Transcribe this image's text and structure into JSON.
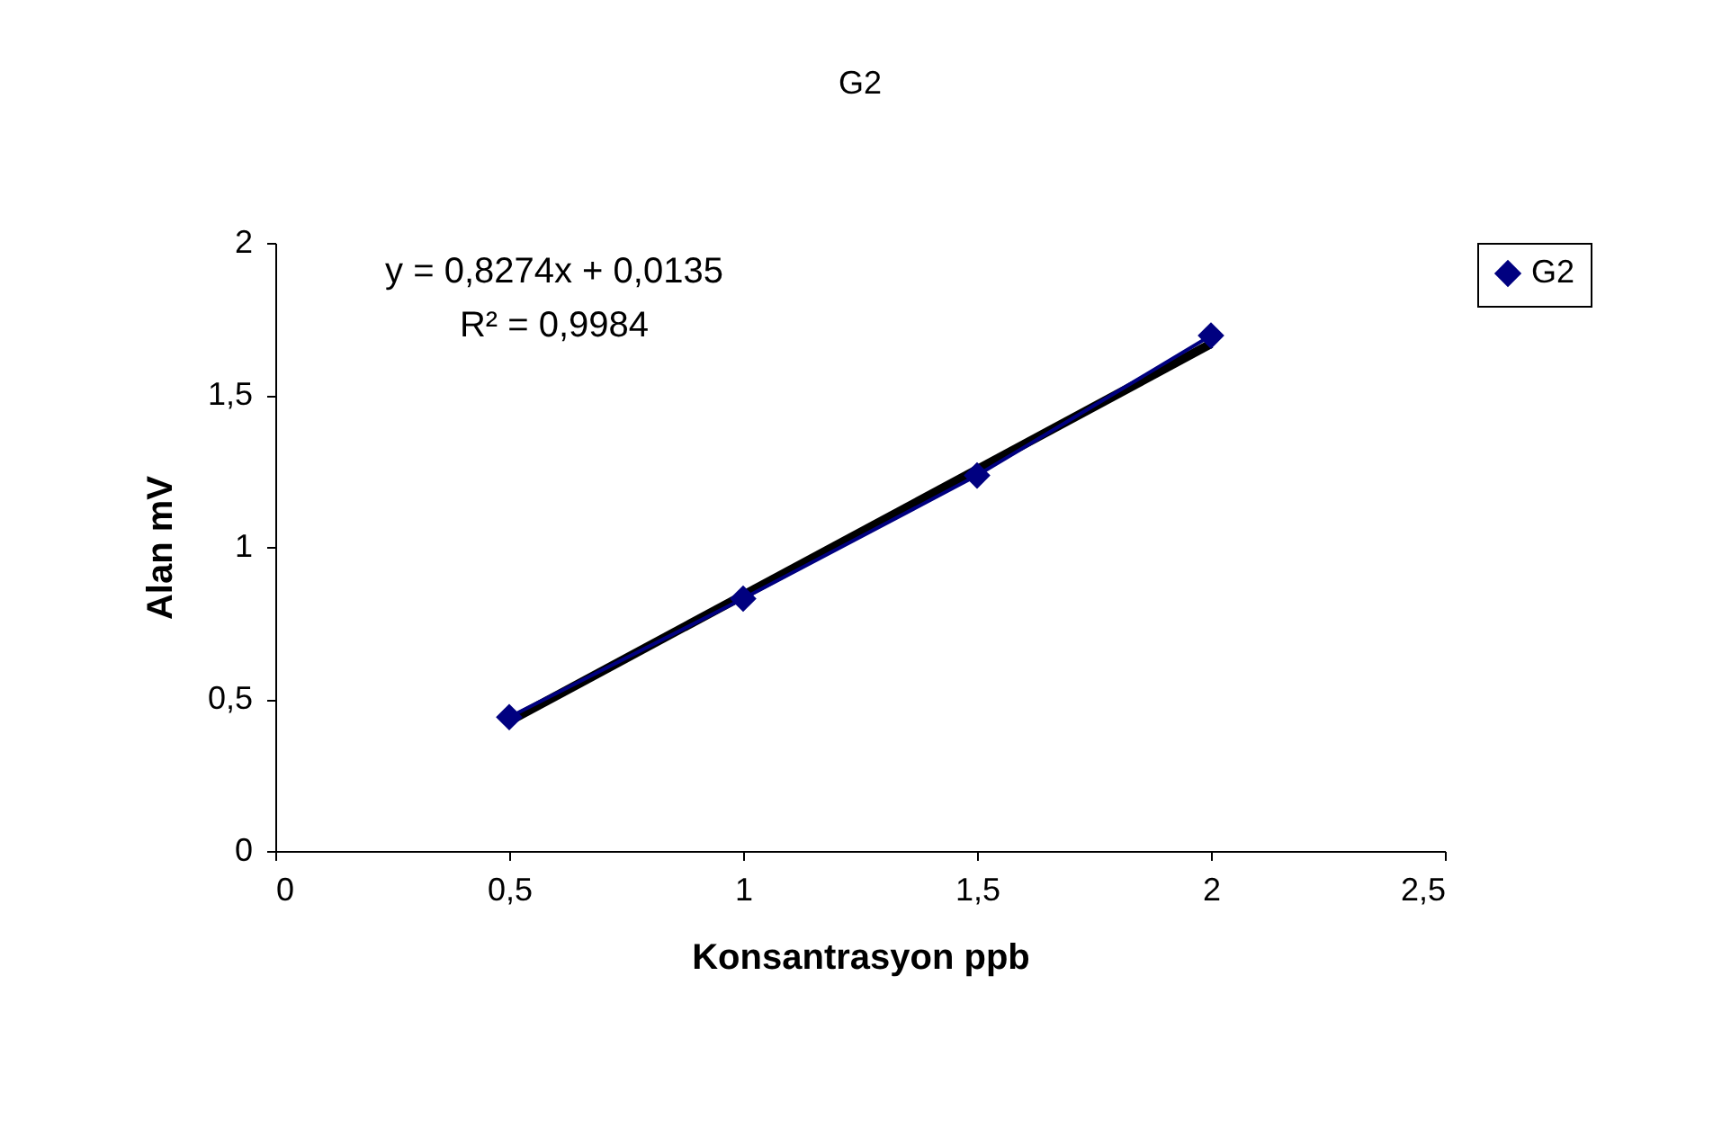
{
  "chart_data": {
    "type": "line",
    "title": "G2",
    "xlabel": "Konsantrasyon ppb",
    "ylabel": "Alan mV",
    "x": [
      0.5,
      1,
      1.5,
      2
    ],
    "series": [
      {
        "name": "G2",
        "color": "#000080",
        "values": [
          0.44,
          0.83,
          1.235,
          1.695
        ]
      },
      {
        "type": "line",
        "color": "#000000",
        "x": [
          0.5,
          2
        ],
        "values": [
          0.427,
          1.668
        ],
        "marker": "none"
      }
    ],
    "annotations": [
      "y = 0,8274x + 0,0135",
      "R² = 0,9984"
    ],
    "xlim": [
      0,
      2.5
    ],
    "xticks": [
      0,
      {
        "value": 0.5,
        "label": "0,5"
      },
      1,
      {
        "value": 1.5,
        "label": "1,5"
      },
      2,
      {
        "value": 2.5,
        "label": "2,5"
      }
    ],
    "ylim": [
      0,
      2
    ],
    "yticks": [
      0,
      {
        "value": 0.5,
        "label": "0,5"
      },
      1,
      {
        "value": 1.5,
        "label": "1,5"
      },
      2
    ],
    "grid": false,
    "legend": "right",
    "marker": "diamond"
  }
}
